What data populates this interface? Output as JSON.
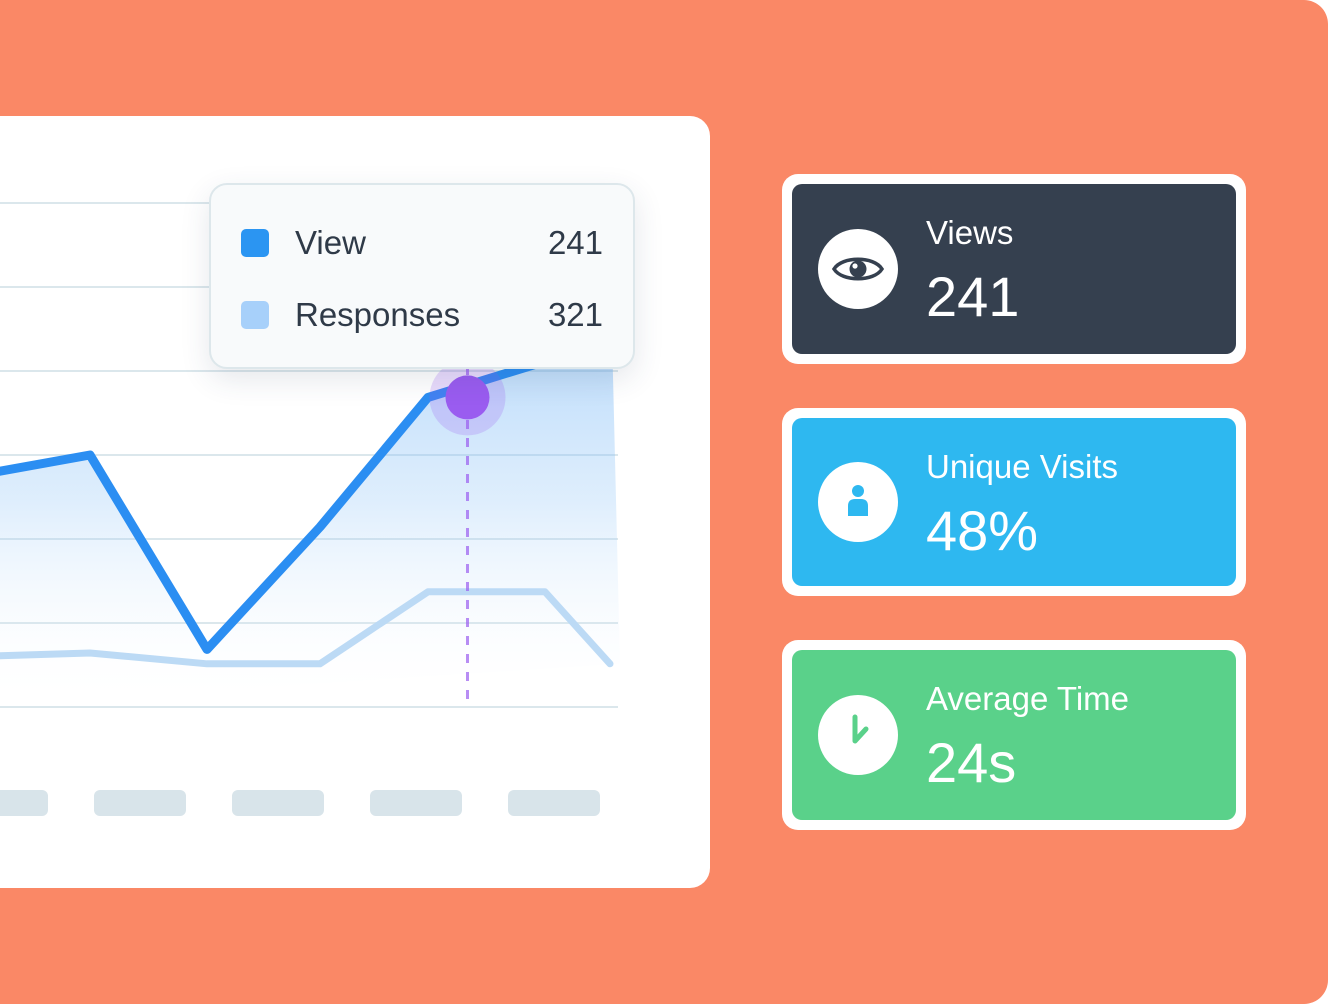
{
  "tooltip": {
    "rows": [
      {
        "label": "View",
        "value": "241",
        "color": "#2b95f2"
      },
      {
        "label": "Responses",
        "value": "321",
        "color": "#a7d0fa"
      }
    ]
  },
  "stats": [
    {
      "label": "Views",
      "value": "241",
      "icon": "eye-icon",
      "color": "#35404f"
    },
    {
      "label": "Unique Visits",
      "value": "48%",
      "icon": "person-icon",
      "color": "#2eb8f0"
    },
    {
      "label": "Average Time",
      "value": "24s",
      "icon": "clock-icon",
      "color": "#5ad18a"
    }
  ],
  "colors": {
    "background": "#fa8866",
    "card": "#ffffff",
    "view_line": "#2b8ef2",
    "responses_line": "#bcdaf5",
    "marker": "#9a5cf0"
  },
  "chart_data": {
    "type": "line",
    "grid": true,
    "x_tick_labels_visible": false,
    "series": [
      {
        "name": "View",
        "values": [
          null,
          62,
          65,
          38,
          55,
          73,
          78,
          93
        ]
      },
      {
        "name": "Responses",
        "values": [
          null,
          37,
          37.5,
          36,
          36,
          46,
          46,
          36
        ]
      }
    ],
    "highlight_index": 5,
    "ylim": [
      30,
      100
    ]
  }
}
